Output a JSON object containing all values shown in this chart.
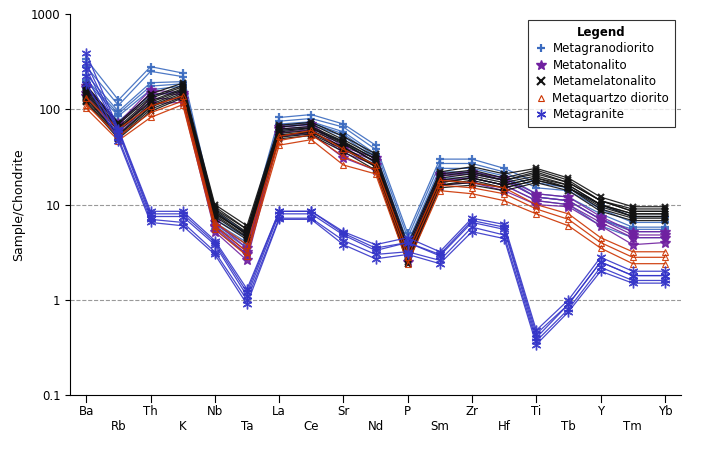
{
  "elements": [
    "Ba",
    "Rb",
    "Th",
    "K",
    "Nb",
    "Ta",
    "La",
    "Ce",
    "Sr",
    "Nd",
    "P",
    "Sm",
    "Zr",
    "Hf",
    "Ti",
    "Tb",
    "Y",
    "Tm",
    "Yb"
  ],
  "top_labels": [
    [
      "Ba",
      0
    ],
    [
      "Th",
      2
    ],
    [
      "Nb",
      4
    ],
    [
      "La",
      6
    ],
    [
      "Sr",
      8
    ],
    [
      "P",
      10
    ],
    [
      "Zr",
      12
    ],
    [
      "Ti",
      14
    ],
    [
      "Y",
      16
    ],
    [
      "Yb",
      18
    ]
  ],
  "bot_labels": [
    [
      "Rb",
      1
    ],
    [
      "K",
      3
    ],
    [
      "Ta",
      5
    ],
    [
      "Ce",
      7
    ],
    [
      "Nd",
      9
    ],
    [
      "Sm",
      11
    ],
    [
      "Hf",
      13
    ],
    [
      "Tb",
      15
    ],
    [
      "Tm",
      17
    ]
  ],
  "ylabel": "Sample/Chondrite",
  "ylim_lo": 0.1,
  "ylim_hi": 1000,
  "legend_title": "Legend",
  "series": [
    {
      "name": "Metagranodiorito",
      "color": "#3a6abf",
      "marker": "+",
      "ms": 6,
      "mew": 1.6,
      "lw": 0.9,
      "mfc": "none",
      "samples": [
        [
          280,
          110,
          250,
          220,
          7,
          4.5,
          75,
          80,
          65,
          38,
          4.5,
          27,
          27,
          22,
          15,
          14,
          9,
          6.5,
          6.5
        ],
        [
          230,
          95,
          190,
          195,
          6.5,
          4.0,
          70,
          74,
          58,
          34,
          4.0,
          24,
          24,
          20,
          13,
          12,
          8,
          5.8,
          5.8
        ],
        [
          195,
          85,
          160,
          175,
          6.0,
          3.5,
          65,
          69,
          52,
          30,
          3.5,
          21,
          21,
          18,
          12,
          11,
          7,
          5.2,
          5.2
        ],
        [
          165,
          75,
          140,
          155,
          5.5,
          3.0,
          60,
          64,
          46,
          27,
          3.0,
          19,
          19,
          16,
          11,
          10,
          6,
          4.5,
          4.5
        ],
        [
          335,
          125,
          280,
          240,
          8.5,
          5.0,
          82,
          88,
          70,
          42,
          5.0,
          30,
          30,
          24,
          17,
          15,
          10,
          7.5,
          7.5
        ],
        [
          205,
          90,
          175,
          185,
          6.2,
          3.8,
          67,
          72,
          55,
          32,
          3.8,
          22,
          22,
          19,
          12,
          11,
          7,
          5.5,
          5.5
        ]
      ]
    },
    {
      "name": "Metatonalito",
      "color": "#7020a0",
      "marker": "*",
      "ms": 7,
      "mew": 1.0,
      "lw": 0.9,
      "mfc": "auto",
      "samples": [
        [
          175,
          72,
          160,
          148,
          6.5,
          3.5,
          65,
          70,
          40,
          31,
          3.5,
          21,
          22,
          19,
          13,
          12,
          7.5,
          5.2,
          5.2
        ],
        [
          148,
          60,
          130,
          128,
          5.8,
          3.0,
          57,
          61,
          35,
          26,
          3.0,
          18,
          19,
          16,
          11,
          10,
          6.5,
          4.5,
          4.5
        ],
        [
          138,
          55,
          115,
          118,
          5.2,
          2.6,
          52,
          56,
          31,
          23,
          2.5,
          16,
          17,
          14,
          10,
          9.5,
          6.0,
          3.8,
          4.0
        ],
        [
          168,
          68,
          148,
          142,
          6.0,
          3.2,
          62,
          66,
          38,
          29,
          3.2,
          20,
          21,
          18,
          12,
          11,
          7.0,
          4.8,
          4.8
        ]
      ]
    },
    {
      "name": "Metamelatonalito",
      "color": "#111111",
      "marker": "x",
      "ms": 5,
      "mew": 1.5,
      "lw": 0.9,
      "mfc": "none",
      "samples": [
        [
          160,
          65,
          130,
          172,
          9,
          5.5,
          62,
          66,
          46,
          30,
          3.2,
          20,
          22,
          18,
          22,
          17,
          11,
          8.5,
          8.5
        ],
        [
          132,
          54,
          108,
          148,
          8,
          5.0,
          54,
          58,
          40,
          26,
          2.8,
          17,
          19,
          16,
          19,
          15,
          10,
          7.5,
          7.5
        ],
        [
          178,
          72,
          145,
          188,
          10,
          6.0,
          68,
          73,
          52,
          34,
          3.8,
          22,
          25,
          21,
          24,
          19,
          12,
          9.5,
          9.5
        ],
        [
          118,
          49,
          95,
          132,
          7,
          4.3,
          49,
          53,
          36,
          23,
          2.4,
          15,
          16,
          14,
          17,
          14,
          8.5,
          6.8,
          6.8
        ],
        [
          148,
          62,
          118,
          160,
          8.5,
          4.8,
          58,
          63,
          44,
          28,
          3.0,
          18,
          20,
          17,
          20,
          16,
          10,
          8.0,
          8.0
        ],
        [
          168,
          70,
          135,
          178,
          9.5,
          5.5,
          65,
          70,
          48,
          32,
          3.5,
          21,
          23,
          19,
          23,
          18,
          11,
          9.0,
          9.0
        ],
        [
          122,
          51,
          100,
          136,
          7.5,
          4.5,
          51,
          55,
          38,
          25,
          2.5,
          16,
          17,
          15,
          18,
          15,
          9,
          7.2,
          7.2
        ],
        [
          142,
          59,
          112,
          155,
          8.2,
          4.8,
          56,
          60,
          43,
          28,
          2.9,
          17,
          19,
          16,
          19,
          16,
          10,
          8.0,
          8.0
        ],
        [
          155,
          63,
          122,
          165,
          8.8,
          5.1,
          60,
          64,
          45,
          30,
          3.1,
          19,
          21,
          18,
          21,
          17,
          11,
          8.5,
          8.5
        ],
        [
          128,
          53,
          105,
          142,
          7.8,
          4.6,
          53,
          57,
          40,
          25,
          2.7,
          16,
          18,
          15,
          18,
          15,
          9.5,
          7.5,
          7.5
        ]
      ]
    },
    {
      "name": "Metaquartzo diorito",
      "color": "#cc3300",
      "marker": "^",
      "ms": 5,
      "mew": 0.8,
      "lw": 0.9,
      "mfc": "none",
      "samples": [
        [
          112,
          52,
          92,
          122,
          6.0,
          3.2,
          47,
          54,
          32,
          23,
          2.8,
          16,
          15,
          13,
          9,
          7,
          4.0,
          2.8,
          2.8
        ],
        [
          132,
          62,
          108,
          138,
          6.5,
          3.8,
          52,
          60,
          38,
          26,
          3.2,
          18,
          17,
          15,
          10,
          8,
          4.5,
          3.2,
          3.2
        ],
        [
          102,
          47,
          82,
          112,
          5.5,
          2.9,
          42,
          48,
          26,
          21,
          2.4,
          14,
          13,
          11,
          8,
          6,
          3.5,
          2.4,
          2.4
        ]
      ]
    },
    {
      "name": "Metagranite",
      "color": "#3535c8",
      "marker": "star",
      "ms": 7,
      "mew": 1.0,
      "lw": 0.9,
      "mfc": "none",
      "samples": [
        [
          385,
          62,
          8.5,
          8.5,
          4.2,
          1.3,
          8.5,
          8.5,
          5.2,
          3.8,
          4.5,
          3.2,
          7.2,
          6.2,
          0.48,
          1.0,
          2.8,
          2.0,
          2.0
        ],
        [
          265,
          57,
          7.5,
          7.5,
          3.8,
          1.1,
          8.0,
          8.0,
          4.8,
          3.3,
          4.0,
          2.9,
          6.5,
          5.5,
          0.4,
          0.9,
          2.5,
          1.8,
          1.8
        ],
        [
          225,
          50,
          7.0,
          6.5,
          3.2,
          1.0,
          7.2,
          7.2,
          4.2,
          3.0,
          3.2,
          2.6,
          5.8,
          4.8,
          0.37,
          0.8,
          2.2,
          1.6,
          1.6
        ],
        [
          305,
          60,
          8.0,
          8.0,
          4.0,
          1.2,
          8.5,
          8.5,
          5.0,
          3.5,
          4.0,
          3.0,
          6.8,
          5.8,
          0.44,
          0.9,
          2.5,
          1.8,
          1.8
        ],
        [
          185,
          47,
          6.5,
          6.0,
          3.0,
          0.9,
          7.0,
          7.0,
          3.8,
          2.7,
          3.0,
          2.4,
          5.2,
          4.4,
          0.34,
          0.75,
          2.0,
          1.5,
          1.5
        ]
      ]
    }
  ]
}
